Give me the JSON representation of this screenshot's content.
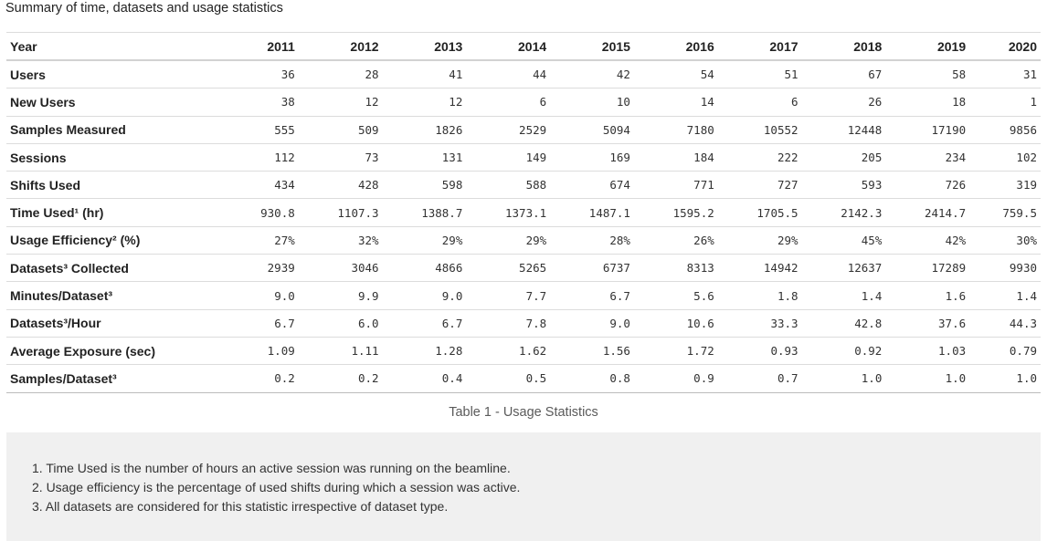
{
  "heading": "Summary of time, datasets and usage statistics",
  "table": {
    "header_label": "Year",
    "years": [
      "2011",
      "2012",
      "2013",
      "2014",
      "2015",
      "2016",
      "2017",
      "2018",
      "2019",
      "2020"
    ],
    "rows": [
      {
        "label": "Users",
        "values": [
          "36",
          "28",
          "41",
          "44",
          "42",
          "54",
          "51",
          "67",
          "58",
          "31"
        ]
      },
      {
        "label": "New Users",
        "values": [
          "38",
          "12",
          "12",
          "6",
          "10",
          "14",
          "6",
          "26",
          "18",
          "1"
        ]
      },
      {
        "label": "Samples Measured",
        "values": [
          "555",
          "509",
          "1826",
          "2529",
          "5094",
          "7180",
          "10552",
          "12448",
          "17190",
          "9856"
        ]
      },
      {
        "label": "Sessions",
        "values": [
          "112",
          "73",
          "131",
          "149",
          "169",
          "184",
          "222",
          "205",
          "234",
          "102"
        ]
      },
      {
        "label": "Shifts Used",
        "values": [
          "434",
          "428",
          "598",
          "588",
          "674",
          "771",
          "727",
          "593",
          "726",
          "319"
        ]
      },
      {
        "label": "Time Used¹ (hr)",
        "values": [
          "930.8",
          "1107.3",
          "1388.7",
          "1373.1",
          "1487.1",
          "1595.2",
          "1705.5",
          "2142.3",
          "2414.7",
          "759.5"
        ]
      },
      {
        "label": "Usage Efficiency² (%)",
        "values": [
          "27%",
          "32%",
          "29%",
          "29%",
          "28%",
          "26%",
          "29%",
          "45%",
          "42%",
          "30%"
        ]
      },
      {
        "label": "Datasets³ Collected",
        "values": [
          "2939",
          "3046",
          "4866",
          "5265",
          "6737",
          "8313",
          "14942",
          "12637",
          "17289",
          "9930"
        ]
      },
      {
        "label": "Minutes/Dataset³",
        "values": [
          "9.0",
          "9.9",
          "9.0",
          "7.7",
          "6.7",
          "5.6",
          "1.8",
          "1.4",
          "1.6",
          "1.4"
        ]
      },
      {
        "label": "Datasets³/Hour",
        "values": [
          "6.7",
          "6.0",
          "6.7",
          "7.8",
          "9.0",
          "10.6",
          "33.3",
          "42.8",
          "37.6",
          "44.3"
        ]
      },
      {
        "label": "Average Exposure (sec)",
        "values": [
          "1.09",
          "1.11",
          "1.28",
          "1.62",
          "1.56",
          "1.72",
          "0.93",
          "0.92",
          "1.03",
          "0.79"
        ]
      },
      {
        "label": "Samples/Dataset³",
        "values": [
          "0.2",
          "0.2",
          "0.4",
          "0.5",
          "0.8",
          "0.9",
          "0.7",
          "1.0",
          "1.0",
          "1.0"
        ]
      }
    ]
  },
  "caption": "Table 1 - Usage Statistics",
  "notes": [
    "1. Time Used is the number of hours an active session was running on the beamline.",
    "2. Usage efficiency is the percentage of used shifts during which a session was active.",
    "3. All datasets are considered for this statistic irrespective of dataset type."
  ]
}
